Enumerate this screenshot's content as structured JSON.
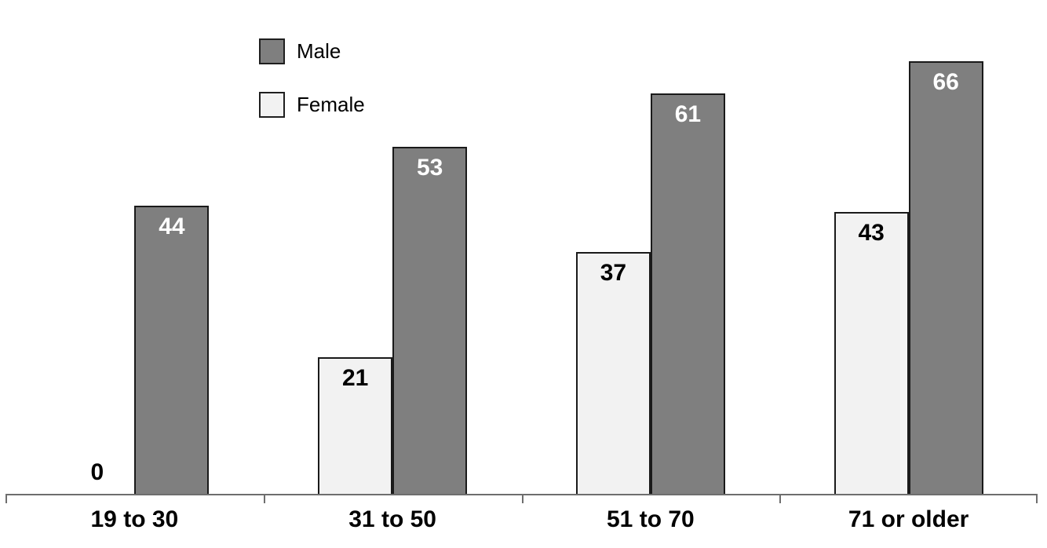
{
  "legend": {
    "items": [
      {
        "label": "Male",
        "color": "#7f7f7f"
      },
      {
        "label": "Female",
        "color": "#f2f2f2"
      }
    ]
  },
  "chart_data": {
    "type": "bar",
    "categories": [
      "19 to 30",
      "31 to 50",
      "51 to 70",
      "71 or older"
    ],
    "series": [
      {
        "name": "Female",
        "values": [
          0,
          21,
          37,
          43
        ],
        "fill": "#f2f2f2",
        "label_color": "#000000"
      },
      {
        "name": "Male",
        "values": [
          44,
          53,
          61,
          66
        ],
        "fill": "#7f7f7f",
        "label_color": "#ffffff"
      }
    ],
    "title": "",
    "xlabel": "",
    "ylabel": "",
    "ylim": [
      0,
      70
    ],
    "grid": false,
    "y_axis_visible": false,
    "legend_position": "top-left",
    "bar_labels": "inside-top",
    "colors": {
      "bar_border": "#1a1a1a",
      "axis": "#6e6e6e",
      "background": "#ffffff"
    }
  }
}
